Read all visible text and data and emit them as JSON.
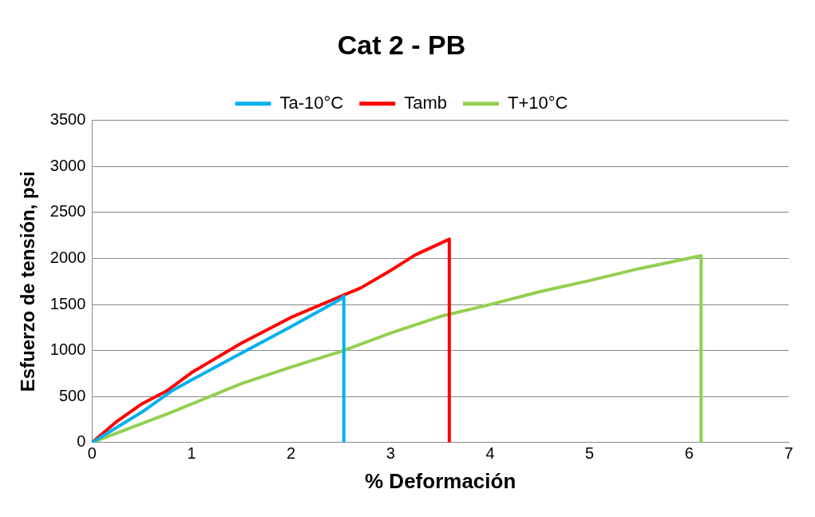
{
  "chart_data": {
    "type": "line",
    "title": "Cat 2 - PB",
    "xlabel": "% Deformación",
    "ylabel": "Esfuerzo de tensión, psi",
    "series": [
      {
        "name": "Ta-10°C",
        "color": "#00b0f0",
        "x": [
          0,
          0.5,
          0.8,
          1,
          1.5,
          2,
          2.5,
          2.53,
          2.53
        ],
        "values": [
          0,
          330,
          560,
          680,
          970,
          1260,
          1560,
          1590,
          0
        ]
      },
      {
        "name": "Tamb",
        "color": "#ff0000",
        "x": [
          0,
          0.25,
          0.5,
          0.75,
          1,
          1.5,
          2,
          2.5,
          2.7,
          3,
          3.25,
          3.59,
          3.59
        ],
        "values": [
          0,
          230,
          420,
          560,
          760,
          1080,
          1360,
          1590,
          1680,
          1870,
          2040,
          2210,
          0
        ]
      },
      {
        "name": "T+10°C",
        "color": "#92d050",
        "x": [
          0,
          0.8,
          1.5,
          2,
          2.5,
          3,
          3.5,
          4,
          4.5,
          5,
          5.5,
          6.12,
          6.12
        ],
        "values": [
          0,
          330,
          640,
          820,
          990,
          1190,
          1370,
          1500,
          1640,
          1760,
          1890,
          2030,
          0
        ]
      }
    ],
    "xlim": [
      0,
      7
    ],
    "xticks": [
      0,
      1,
      2,
      3,
      4,
      5,
      6,
      7
    ],
    "ylim": [
      0,
      3500
    ],
    "yticks": [
      0,
      500,
      1000,
      1500,
      2000,
      2500,
      3000,
      3500
    ],
    "grid": "y",
    "legend": "top",
    "marker": "none",
    "line_style": "solid"
  }
}
